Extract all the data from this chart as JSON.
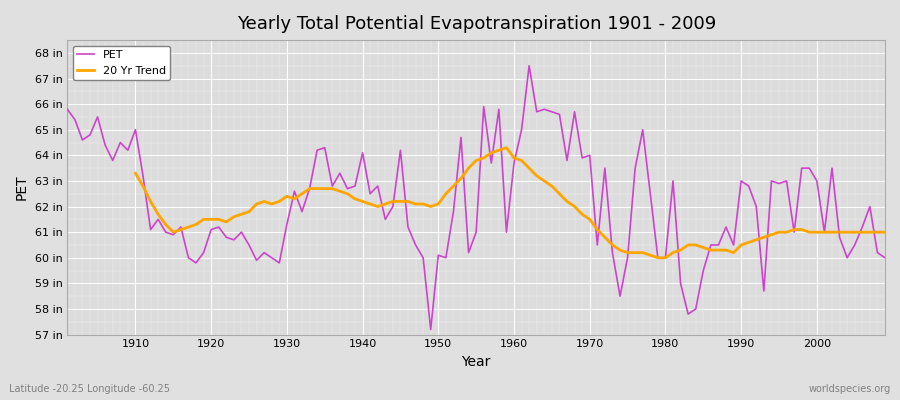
{
  "title": "Yearly Total Potential Evapotranspiration 1901 - 2009",
  "xlabel": "Year",
  "ylabel": "PET",
  "subtitle_left": "Latitude -20.25 Longitude -60.25",
  "subtitle_right": "worldspecies.org",
  "ylim": [
    57,
    68.5
  ],
  "yticks": [
    57,
    58,
    59,
    60,
    61,
    62,
    63,
    64,
    65,
    66,
    67,
    68
  ],
  "ytick_labels": [
    "57 in",
    "58 in",
    "59 in",
    "60 in",
    "61 in",
    "62 in",
    "63 in",
    "64 in",
    "65 in",
    "66 in",
    "67 in",
    "68 in"
  ],
  "xlim": [
    1901,
    2009
  ],
  "xticks": [
    1910,
    1920,
    1930,
    1940,
    1950,
    1960,
    1970,
    1980,
    1990,
    2000
  ],
  "pet_color": "#CC44CC",
  "trend_color": "#FFA500",
  "pet_linewidth": 1.2,
  "trend_linewidth": 2.0,
  "years": [
    1901,
    1902,
    1903,
    1904,
    1905,
    1906,
    1907,
    1908,
    1909,
    1910,
    1911,
    1912,
    1913,
    1914,
    1915,
    1916,
    1917,
    1918,
    1919,
    1920,
    1921,
    1922,
    1923,
    1924,
    1925,
    1926,
    1927,
    1928,
    1929,
    1930,
    1931,
    1932,
    1933,
    1934,
    1935,
    1936,
    1937,
    1938,
    1939,
    1940,
    1941,
    1942,
    1943,
    1944,
    1945,
    1946,
    1947,
    1948,
    1949,
    1950,
    1951,
    1952,
    1953,
    1954,
    1955,
    1956,
    1957,
    1958,
    1959,
    1960,
    1961,
    1962,
    1963,
    1964,
    1965,
    1966,
    1967,
    1968,
    1969,
    1970,
    1971,
    1972,
    1973,
    1974,
    1975,
    1976,
    1977,
    1978,
    1979,
    1980,
    1981,
    1982,
    1983,
    1984,
    1985,
    1986,
    1987,
    1988,
    1989,
    1990,
    1991,
    1992,
    1993,
    1994,
    1995,
    1996,
    1997,
    1998,
    1999,
    2000,
    2001,
    2002,
    2003,
    2004,
    2005,
    2006,
    2007,
    2008,
    2009
  ],
  "pet_values": [
    65.8,
    65.4,
    64.6,
    64.8,
    65.5,
    64.4,
    63.8,
    64.5,
    64.2,
    65.0,
    63.2,
    61.1,
    61.5,
    61.0,
    60.9,
    61.2,
    60.0,
    59.8,
    60.2,
    61.1,
    61.2,
    60.8,
    60.7,
    61.0,
    60.5,
    59.9,
    60.2,
    60.0,
    59.8,
    61.3,
    62.6,
    61.8,
    62.7,
    64.2,
    64.3,
    62.8,
    63.3,
    62.7,
    62.8,
    64.1,
    62.5,
    62.8,
    61.5,
    62.0,
    64.2,
    61.2,
    60.5,
    60.0,
    57.2,
    60.1,
    60.0,
    61.8,
    64.7,
    60.2,
    61.0,
    65.9,
    63.7,
    65.8,
    61.0,
    63.7,
    65.0,
    67.5,
    65.7,
    65.8,
    65.7,
    65.6,
    63.8,
    65.7,
    63.9,
    64.0,
    60.5,
    63.5,
    60.2,
    58.5,
    60.0,
    63.5,
    65.0,
    62.5,
    60.0,
    60.0,
    63.0,
    59.0,
    57.8,
    58.0,
    59.5,
    60.5,
    60.5,
    61.2,
    60.5,
    63.0,
    62.8,
    62.0,
    58.7,
    63.0,
    62.9,
    63.0,
    61.0,
    63.5,
    63.5,
    63.0,
    61.0,
    63.5,
    60.8,
    60.0,
    60.5,
    61.2,
    62.0,
    60.2,
    60.0
  ],
  "trend_years": [
    1910,
    1911,
    1912,
    1913,
    1914,
    1915,
    1916,
    1917,
    1918,
    1919,
    1920,
    1921,
    1922,
    1923,
    1924,
    1925,
    1926,
    1927,
    1928,
    1929,
    1930,
    1931,
    1932,
    1933,
    1934,
    1935,
    1936,
    1937,
    1938,
    1939,
    1940,
    1941,
    1942,
    1943,
    1944,
    1945,
    1946,
    1947,
    1948,
    1949,
    1950,
    1951,
    1952,
    1953,
    1954,
    1955,
    1956,
    1957,
    1958,
    1959,
    1960,
    1961,
    1962,
    1963,
    1964,
    1965,
    1966,
    1967,
    1968,
    1969,
    1970,
    1971,
    1972,
    1973,
    1974,
    1975,
    1976,
    1977,
    1978,
    1979,
    1980,
    1981,
    1982,
    1983,
    1984,
    1985,
    1986,
    1987,
    1988,
    1989,
    1990,
    1991,
    1992,
    1993,
    1994,
    1995,
    1996,
    1997,
    1998,
    1999,
    2000,
    2001,
    2002,
    2003,
    2004,
    2005,
    2006,
    2007,
    2008,
    2009
  ],
  "trend_values": [
    63.3,
    62.8,
    62.2,
    61.7,
    61.3,
    61.0,
    61.1,
    61.2,
    61.3,
    61.5,
    61.5,
    61.5,
    61.4,
    61.6,
    61.7,
    61.8,
    62.1,
    62.2,
    62.1,
    62.2,
    62.4,
    62.3,
    62.5,
    62.7,
    62.7,
    62.7,
    62.7,
    62.6,
    62.5,
    62.3,
    62.2,
    62.1,
    62.0,
    62.1,
    62.2,
    62.2,
    62.2,
    62.1,
    62.1,
    62.0,
    62.1,
    62.5,
    62.8,
    63.1,
    63.5,
    63.8,
    63.9,
    64.1,
    64.2,
    64.3,
    63.9,
    63.8,
    63.5,
    63.2,
    63.0,
    62.8,
    62.5,
    62.2,
    62.0,
    61.7,
    61.5,
    61.1,
    60.8,
    60.5,
    60.3,
    60.2,
    60.2,
    60.2,
    60.1,
    60.0,
    60.0,
    60.2,
    60.3,
    60.5,
    60.5,
    60.4,
    60.3,
    60.3,
    60.3,
    60.2,
    60.5,
    60.6,
    60.7,
    60.8,
    60.9,
    61.0,
    61.0,
    61.1,
    61.1,
    61.0,
    61.0,
    61.0,
    61.0,
    61.0,
    61.0,
    61.0,
    61.0,
    61.0,
    61.0,
    61.0
  ]
}
